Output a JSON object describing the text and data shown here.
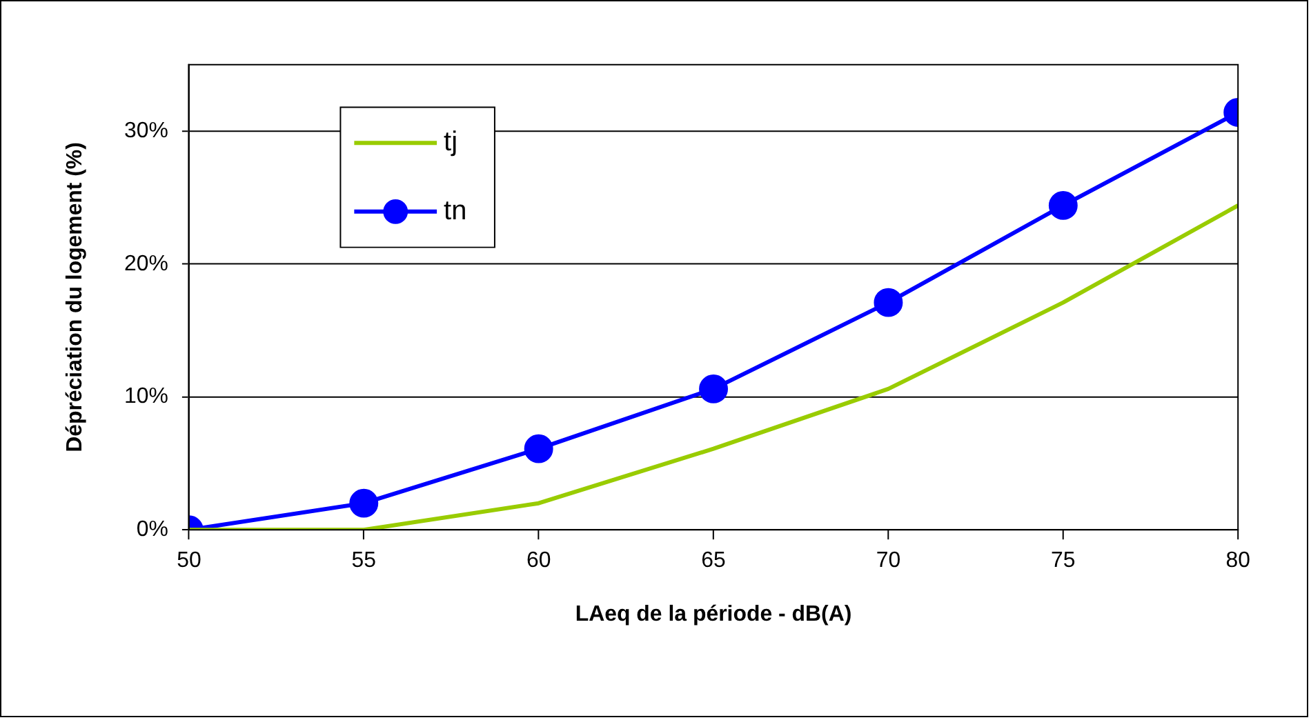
{
  "chart_data": {
    "type": "line",
    "xlabel": "LAeq de la période - dB(A)",
    "ylabel": "Dépréciation du logement (%)",
    "x": [
      50,
      55,
      60,
      65,
      70,
      75,
      80
    ],
    "series": [
      {
        "name": "tj",
        "color": "#99cc00",
        "marker": "none",
        "values": [
          0,
          0,
          2,
          6.1,
          10.6,
          17.1,
          24.4
        ]
      },
      {
        "name": "tn",
        "color": "#0000ff",
        "marker": "circle",
        "values": [
          0,
          2,
          6.1,
          10.6,
          17.1,
          24.4,
          31.4
        ]
      }
    ],
    "xlim": [
      50,
      80
    ],
    "xticks": [
      50,
      55,
      60,
      65,
      70,
      75,
      80
    ],
    "ylim": [
      0,
      35
    ],
    "yticks": [
      {
        "value": 0,
        "label": "0%"
      },
      {
        "value": 10,
        "label": "10%"
      },
      {
        "value": 20,
        "label": "20%"
      },
      {
        "value": 30,
        "label": "30%"
      }
    ],
    "grid": "y",
    "legend": "top left",
    "line_style": "solid"
  }
}
